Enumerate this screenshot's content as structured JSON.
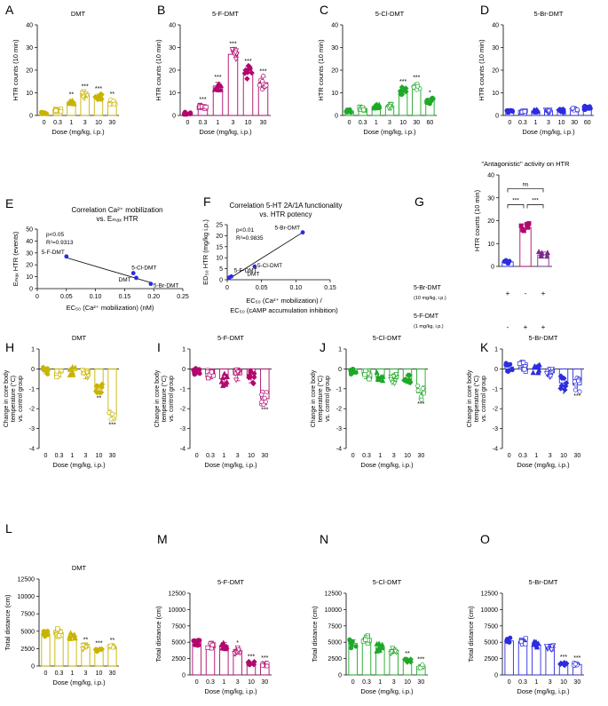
{
  "colors": {
    "DMT": "#c8b400",
    "5-F-DMT": "#b0086e",
    "5-Cl-DMT": "#1fa829",
    "5-Br-DMT": "#2c2ce0",
    "axis": "#000000",
    "line": "#000000"
  },
  "chart_data": [
    {
      "id": "A",
      "type": "bar",
      "title": "DMT",
      "compound": "DMT",
      "ylabel": "HTR counts (10 min)",
      "xlabel": "Dose (mg/kg, i.p.)",
      "categories": [
        "0",
        "0.3",
        "1",
        "3",
        "10",
        "30"
      ],
      "values": [
        1.2,
        2.2,
        6,
        9,
        8,
        6
      ],
      "errors": [
        0.4,
        0.5,
        0.9,
        1.4,
        1.4,
        1.0
      ],
      "ylim": [
        0,
        40
      ],
      "yticks": [
        0,
        10,
        20,
        30,
        40
      ],
      "stars": [
        "",
        "",
        "**",
        "***",
        "***",
        "**"
      ]
    },
    {
      "id": "B",
      "type": "bar",
      "title": "5-F-DMT",
      "compound": "5-F-DMT",
      "ylabel": "HTR counts (10 min)",
      "xlabel": "Dose (mg/kg, i.p.)",
      "categories": [
        "0",
        "0.3",
        "1",
        "3",
        "10",
        "30"
      ],
      "values": [
        1,
        4,
        13,
        27,
        19,
        14.5
      ],
      "errors": [
        0.3,
        0.8,
        1.6,
        2.3,
        2.6,
        2.6
      ],
      "ylim": [
        0,
        40
      ],
      "yticks": [
        0,
        10,
        20,
        30,
        40
      ],
      "stars": [
        "",
        "***",
        "***",
        "***",
        "***",
        "***"
      ]
    },
    {
      "id": "C",
      "type": "bar",
      "title": "5-Cl-DMT",
      "compound": "5-Cl-DMT",
      "ylabel": "HTR counts (10 min)",
      "xlabel": "Dose (mg/kg, i.p.)",
      "categories": [
        "0",
        "0.3",
        "1",
        "3",
        "10",
        "30",
        "60"
      ],
      "values": [
        2,
        3,
        4,
        4,
        11,
        12.5,
        6.5
      ],
      "errors": [
        0.6,
        0.8,
        0.8,
        0.9,
        1.6,
        1.8,
        1.1
      ],
      "ylim": [
        0,
        40
      ],
      "yticks": [
        0,
        10,
        20,
        30,
        40
      ],
      "stars": [
        "",
        "",
        "",
        "",
        "***",
        "***",
        "*"
      ]
    },
    {
      "id": "D",
      "type": "bar",
      "title": "5-Br-DMT",
      "compound": "5-Br-DMT",
      "ylabel": "HTR counts (10 min)",
      "xlabel": "Dose (mg/kg, i.p.)",
      "categories": [
        "0",
        "0.3",
        "1",
        "3",
        "10",
        "30",
        "60"
      ],
      "values": [
        2,
        2,
        2,
        2,
        2,
        3,
        3.5
      ],
      "errors": [
        0.5,
        0.5,
        0.5,
        0.6,
        0.6,
        0.7,
        0.8
      ],
      "ylim": [
        0,
        40
      ],
      "yticks": [
        0,
        10,
        20,
        30,
        40
      ],
      "stars": [
        "",
        "",
        "",
        "",
        "",
        "",
        ""
      ]
    },
    {
      "id": "E",
      "type": "scatter",
      "title_line1": "Correlation Ca²⁺ mobilization",
      "title_line2": "vs. Eₘₐₓ HTR",
      "ylabel": "Eₘₐₓ HTR (events)",
      "xlabel": "EC₅₀ (Ca²⁺ mobilization) (nM)",
      "stats": [
        "p<0.05",
        "R²=0.9313"
      ],
      "xlim": [
        0,
        0.25
      ],
      "xticks": [
        "0",
        "0.05",
        "0.10",
        "0.15",
        "0.20",
        "0.25"
      ],
      "ylim": [
        0,
        50
      ],
      "yticks": [
        0,
        10,
        20,
        30,
        40,
        50
      ],
      "points": [
        {
          "label": "5-F-DMT",
          "x": 0.05,
          "y": 27
        },
        {
          "label": "5-Cl-DMT",
          "x": 0.165,
          "y": 13
        },
        {
          "label": "DMT",
          "x": 0.17,
          "y": 9
        },
        {
          "label": "5-Br-DMT",
          "x": 0.195,
          "y": 4
        }
      ],
      "fit": [
        [
          0.05,
          26
        ],
        [
          0.195,
          5
        ]
      ]
    },
    {
      "id": "F",
      "type": "scatter",
      "title_line1": "Correlation 5-HT 2A/1A functionality",
      "title_line2": "vs. HTR potency",
      "ylabel": "ED₅₀ HTR (mg/kg i.p.)",
      "xlabel_line1": "EC₅₀ (Ca²⁺ mobilization) /",
      "xlabel_line2": "EC₅₀ (cAMP accumulation inhibition)",
      "stats": [
        "p<0.01",
        "R²=0.9835"
      ],
      "xlim": [
        0,
        0.15
      ],
      "xticks": [
        "0",
        "0.05",
        "0.10",
        "0.15"
      ],
      "ylim": [
        0,
        25
      ],
      "yticks": [
        0,
        5,
        10,
        15,
        20,
        25
      ],
      "points": [
        {
          "label": "5-Br-DMT",
          "x": 0.11,
          "y": 21.5
        },
        {
          "label": "5-Cl-DMT",
          "x": 0.04,
          "y": 6
        },
        {
          "label": "5-F-DMT",
          "x": 0.006,
          "y": 1.5
        },
        {
          "label": "DMT",
          "x": 0.003,
          "y": 1
        }
      ],
      "fit": [
        [
          0.003,
          0.5
        ],
        [
          0.11,
          21.5
        ]
      ]
    },
    {
      "id": "G",
      "type": "bar",
      "title": "\"Antagonistic\" activity on HTR",
      "ylabel": "HTR counts (10 min)",
      "ylim": [
        0,
        40
      ],
      "yticks": [
        0,
        10,
        20,
        30,
        40
      ],
      "categories": [
        "1",
        "2",
        "3"
      ],
      "values": [
        2,
        17,
        5
      ],
      "errors": [
        0.5,
        1.6,
        1.3
      ],
      "colors": [
        "#2c2ce0",
        "#b0086e",
        "#7b2a8c"
      ],
      "rowlabels": [
        "5-Br-DMT",
        "(10 mg/kg, i.p.)",
        "5-F-DMT",
        "(1 mg/kg, i.p.)"
      ],
      "row1": [
        "+",
        "-",
        "+"
      ],
      "row2": [
        "-",
        "+",
        "+"
      ],
      "brackets": [
        {
          "from": 0,
          "to": 1,
          "text": "***"
        },
        {
          "from": 1,
          "to": 2,
          "text": "***"
        },
        {
          "from": 0,
          "to": 2,
          "text": "ns"
        }
      ]
    },
    {
      "id": "H",
      "type": "bar",
      "title": "DMT",
      "compound": "DMT",
      "ylabel": "Change in core body temperature (°C) vs. control group",
      "xlabel": "Dose (mg/kg, i.p.)",
      "categories": [
        "0",
        "0.3",
        "1",
        "3",
        "10",
        "30"
      ],
      "values": [
        -0.1,
        -0.2,
        -0.1,
        -0.3,
        -1.0,
        -2.3
      ],
      "errors": [
        0.15,
        0.2,
        0.2,
        0.2,
        0.2,
        0.25
      ],
      "ylim": [
        -4,
        1
      ],
      "yticks": [
        1,
        0,
        -1,
        -2,
        -3,
        -4
      ],
      "stars": [
        "",
        "",
        "",
        "",
        "**",
        "***"
      ]
    },
    {
      "id": "I",
      "type": "bar",
      "title": "5-F-DMT",
      "compound": "5-F-DMT",
      "ylabel": "Change in core body temperature (°C) vs. control group",
      "xlabel": "Dose (mg/kg, i.p.)",
      "categories": [
        "0",
        "0.3",
        "1",
        "3",
        "10",
        "30"
      ],
      "values": [
        -0.1,
        -0.3,
        -0.5,
        -0.3,
        -0.4,
        -1.5
      ],
      "errors": [
        0.2,
        0.2,
        0.3,
        0.3,
        0.3,
        0.3
      ],
      "ylim": [
        -4,
        1
      ],
      "yticks": [
        1,
        0,
        -1,
        -2,
        -3,
        -4
      ],
      "stars": [
        "",
        "",
        "",
        "",
        "",
        "***"
      ]
    },
    {
      "id": "J",
      "type": "bar",
      "title": "5-Cl-DMT",
      "compound": "5-Cl-DMT",
      "ylabel": "Change in core body temperature (°C) vs. control group",
      "xlabel": "Dose (mg/kg, i.p.)",
      "categories": [
        "0",
        "0.3",
        "1",
        "3",
        "10",
        "30"
      ],
      "values": [
        -0.1,
        -0.3,
        -0.4,
        -0.5,
        -0.5,
        -1.2
      ],
      "errors": [
        0.15,
        0.2,
        0.2,
        0.2,
        0.2,
        0.3
      ],
      "ylim": [
        -4,
        1
      ],
      "yticks": [
        1,
        0,
        -1,
        -2,
        -3,
        -4
      ],
      "stars": [
        "",
        "",
        "",
        "",
        "",
        "***"
      ]
    },
    {
      "id": "K",
      "type": "bar",
      "title": "5-Br-DMT",
      "compound": "5-Br-DMT",
      "ylabel": "Change in core body temperature (°C) vs. control group",
      "xlabel": "Dose (mg/kg, i.p.)",
      "categories": [
        "0",
        "0.3",
        "1",
        "3",
        "10",
        "30"
      ],
      "values": [
        0.1,
        0.1,
        0,
        -0.2,
        -0.7,
        -0.8
      ],
      "errors": [
        0.2,
        0.2,
        0.2,
        0.2,
        0.3,
        0.3
      ],
      "ylim": [
        -4,
        1
      ],
      "yticks": [
        1,
        0,
        -1,
        -2,
        -3,
        -4
      ],
      "stars": [
        "",
        "",
        "",
        "",
        "*",
        "***"
      ]
    },
    {
      "id": "L",
      "type": "bar",
      "title": "DMT",
      "compound": "DMT",
      "ylabel": "Total distance (cm)",
      "xlabel": "Dose (mg/kg, i.p.)",
      "categories": [
        "0",
        "0.3",
        "1",
        "3",
        "10",
        "30"
      ],
      "values": [
        4600,
        4800,
        4300,
        2700,
        2300,
        2700
      ],
      "errors": [
        400,
        500,
        400,
        300,
        200,
        250
      ],
      "ylim": [
        0,
        12500
      ],
      "yticks": [
        0,
        2500,
        5000,
        7500,
        10000,
        12500
      ],
      "stars": [
        "",
        "",
        "",
        "**",
        "***",
        "**"
      ]
    },
    {
      "id": "M",
      "type": "bar",
      "title": "5-F-DMT",
      "compound": "5-F-DMT",
      "ylabel": "Total distance (cm)",
      "xlabel": "Dose (mg/kg, i.p.)",
      "categories": [
        "0",
        "0.3",
        "1",
        "3",
        "10",
        "30"
      ],
      "values": [
        5000,
        4400,
        4500,
        3700,
        1800,
        1600
      ],
      "errors": [
        450,
        400,
        450,
        400,
        200,
        200
      ],
      "ylim": [
        0,
        12500
      ],
      "yticks": [
        0,
        2500,
        5000,
        7500,
        10000,
        12500
      ],
      "stars": [
        "",
        "",
        "",
        "*",
        "***",
        "***"
      ]
    },
    {
      "id": "N",
      "type": "bar",
      "title": "5-Cl-DMT",
      "compound": "5-Cl-DMT",
      "ylabel": "Total distance (cm)",
      "xlabel": "Dose (mg/kg, i.p.)",
      "categories": [
        "0",
        "0.3",
        "1",
        "3",
        "10",
        "30"
      ],
      "values": [
        4800,
        5500,
        4200,
        3700,
        2200,
        1300
      ],
      "errors": [
        600,
        600,
        500,
        400,
        250,
        250
      ],
      "ylim": [
        0,
        12500
      ],
      "yticks": [
        0,
        2500,
        5000,
        7500,
        10000,
        12500
      ],
      "stars": [
        "",
        "",
        "",
        "",
        "**",
        "***"
      ]
    },
    {
      "id": "O",
      "type": "bar",
      "title": "5-Br-DMT",
      "compound": "5-Br-DMT",
      "ylabel": "Total distance (cm)",
      "xlabel": "Dose (mg/kg, i.p.)",
      "categories": [
        "0",
        "0.3",
        "1",
        "3",
        "10",
        "30"
      ],
      "values": [
        5200,
        5100,
        4600,
        4300,
        1700,
        1600
      ],
      "errors": [
        400,
        400,
        400,
        400,
        200,
        200
      ],
      "ylim": [
        0,
        12500
      ],
      "yticks": [
        0,
        2500,
        5000,
        7500,
        10000,
        12500
      ],
      "stars": [
        "",
        "",
        "",
        "",
        "***",
        "***"
      ]
    }
  ]
}
